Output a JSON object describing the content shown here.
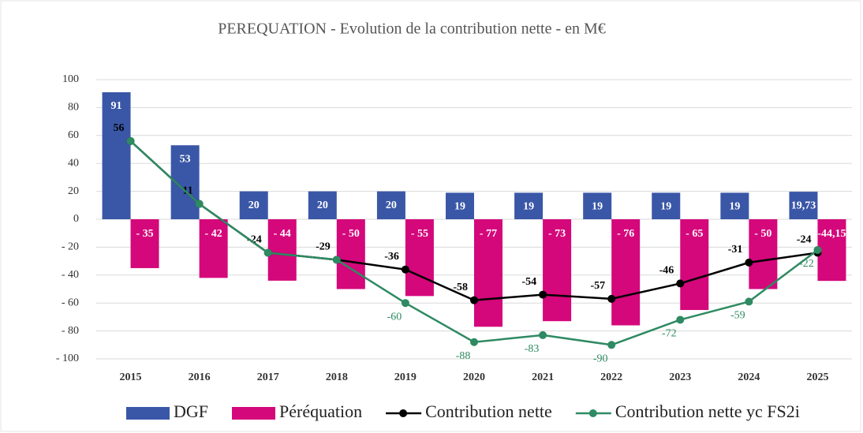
{
  "chart_data": {
    "type": "bar-line",
    "title": "PEREQUATION - Evolution de la contribution nette - en M€",
    "categories": [
      "2015",
      "2016",
      "2017",
      "2018",
      "2019",
      "2020",
      "2021",
      "2022",
      "2023",
      "2024",
      "2025"
    ],
    "series": [
      {
        "name": "DGF",
        "kind": "bar",
        "color": "#3a57a7",
        "values": [
          91,
          53,
          20,
          20,
          20,
          19,
          19,
          19,
          19,
          19,
          19.73
        ],
        "value_labels": [
          "91",
          "53",
          "20",
          "20",
          "20",
          "19",
          "19",
          "19",
          "19",
          "19",
          "19,73"
        ]
      },
      {
        "name": "Péréquation",
        "kind": "bar",
        "color": "#d4077b",
        "values": [
          -35,
          -42,
          -44,
          -50,
          -55,
          -77,
          -73,
          -76,
          -65,
          -50,
          -44.15
        ],
        "value_labels": [
          "- 35",
          "- 42",
          "- 44",
          "- 50",
          "- 55",
          "- 77",
          "- 73",
          "- 76",
          "- 65",
          "- 50",
          "-44,15"
        ]
      },
      {
        "name": "Contribution nette",
        "kind": "line",
        "color": "#000000",
        "values": [
          56,
          11,
          -24,
          -29,
          -36,
          -58,
          -54,
          -57,
          -46,
          -31,
          -24
        ]
      },
      {
        "name": "Contribution nette yc FS2i",
        "kind": "line",
        "color": "#2e8a62",
        "values": [
          56,
          11,
          -24,
          -29,
          -60,
          -88,
          -83,
          -90,
          -72,
          -59,
          -22
        ]
      }
    ],
    "ylim": [
      -100,
      100
    ],
    "yticks": [
      {
        "value": -100,
        "label": "- 100"
      },
      {
        "value": -80,
        "label": "- 80"
      },
      {
        "value": -60,
        "label": "- 60"
      },
      {
        "value": -40,
        "label": "- 40"
      },
      {
        "value": -20,
        "label": "- 20"
      },
      0,
      20,
      40,
      60,
      80,
      100
    ],
    "grid": true,
    "legend": "bottom"
  }
}
